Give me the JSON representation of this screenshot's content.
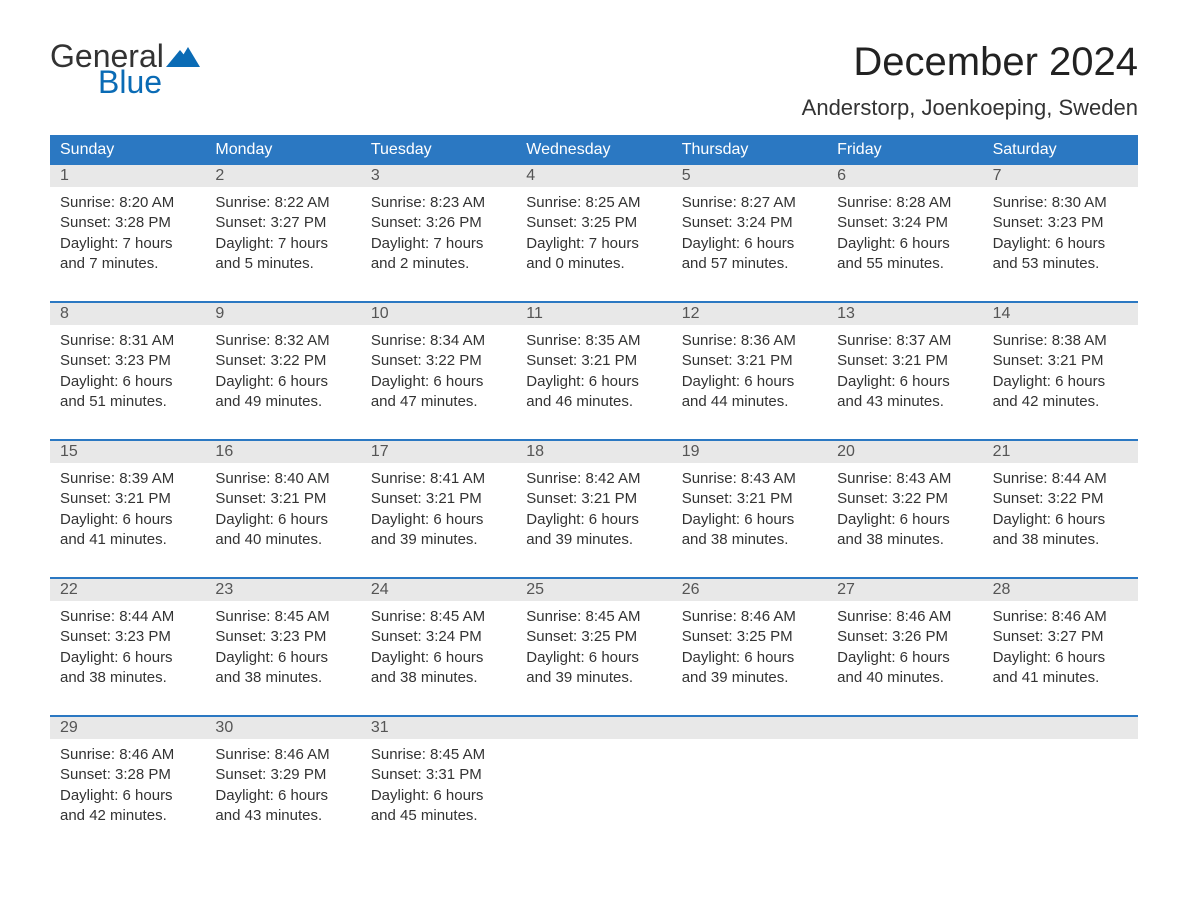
{
  "logo": {
    "word1": "General",
    "word2": "Blue",
    "color_general": "#333333",
    "color_blue": "#0a6bb5",
    "flag_color": "#0a6bb5"
  },
  "title": "December 2024",
  "location": "Anderstorp, Joenkoeping, Sweden",
  "colors": {
    "header_bg": "#2b78c2",
    "header_text": "#ffffff",
    "daynum_bg": "#e8e8e8",
    "week_border": "#2b78c2",
    "body_text": "#333333",
    "page_bg": "#ffffff"
  },
  "typography": {
    "title_fontsize": 40,
    "location_fontsize": 22,
    "weekday_fontsize": 16,
    "daynum_fontsize": 16,
    "body_fontsize": 15
  },
  "weekdays": [
    "Sunday",
    "Monday",
    "Tuesday",
    "Wednesday",
    "Thursday",
    "Friday",
    "Saturday"
  ],
  "weeks": [
    [
      {
        "num": "1",
        "sunrise": "Sunrise: 8:20 AM",
        "sunset": "Sunset: 3:28 PM",
        "day1": "Daylight: 7 hours",
        "day2": "and 7 minutes."
      },
      {
        "num": "2",
        "sunrise": "Sunrise: 8:22 AM",
        "sunset": "Sunset: 3:27 PM",
        "day1": "Daylight: 7 hours",
        "day2": "and 5 minutes."
      },
      {
        "num": "3",
        "sunrise": "Sunrise: 8:23 AM",
        "sunset": "Sunset: 3:26 PM",
        "day1": "Daylight: 7 hours",
        "day2": "and 2 minutes."
      },
      {
        "num": "4",
        "sunrise": "Sunrise: 8:25 AM",
        "sunset": "Sunset: 3:25 PM",
        "day1": "Daylight: 7 hours",
        "day2": "and 0 minutes."
      },
      {
        "num": "5",
        "sunrise": "Sunrise: 8:27 AM",
        "sunset": "Sunset: 3:24 PM",
        "day1": "Daylight: 6 hours",
        "day2": "and 57 minutes."
      },
      {
        "num": "6",
        "sunrise": "Sunrise: 8:28 AM",
        "sunset": "Sunset: 3:24 PM",
        "day1": "Daylight: 6 hours",
        "day2": "and 55 minutes."
      },
      {
        "num": "7",
        "sunrise": "Sunrise: 8:30 AM",
        "sunset": "Sunset: 3:23 PM",
        "day1": "Daylight: 6 hours",
        "day2": "and 53 minutes."
      }
    ],
    [
      {
        "num": "8",
        "sunrise": "Sunrise: 8:31 AM",
        "sunset": "Sunset: 3:23 PM",
        "day1": "Daylight: 6 hours",
        "day2": "and 51 minutes."
      },
      {
        "num": "9",
        "sunrise": "Sunrise: 8:32 AM",
        "sunset": "Sunset: 3:22 PM",
        "day1": "Daylight: 6 hours",
        "day2": "and 49 minutes."
      },
      {
        "num": "10",
        "sunrise": "Sunrise: 8:34 AM",
        "sunset": "Sunset: 3:22 PM",
        "day1": "Daylight: 6 hours",
        "day2": "and 47 minutes."
      },
      {
        "num": "11",
        "sunrise": "Sunrise: 8:35 AM",
        "sunset": "Sunset: 3:21 PM",
        "day1": "Daylight: 6 hours",
        "day2": "and 46 minutes."
      },
      {
        "num": "12",
        "sunrise": "Sunrise: 8:36 AM",
        "sunset": "Sunset: 3:21 PM",
        "day1": "Daylight: 6 hours",
        "day2": "and 44 minutes."
      },
      {
        "num": "13",
        "sunrise": "Sunrise: 8:37 AM",
        "sunset": "Sunset: 3:21 PM",
        "day1": "Daylight: 6 hours",
        "day2": "and 43 minutes."
      },
      {
        "num": "14",
        "sunrise": "Sunrise: 8:38 AM",
        "sunset": "Sunset: 3:21 PM",
        "day1": "Daylight: 6 hours",
        "day2": "and 42 minutes."
      }
    ],
    [
      {
        "num": "15",
        "sunrise": "Sunrise: 8:39 AM",
        "sunset": "Sunset: 3:21 PM",
        "day1": "Daylight: 6 hours",
        "day2": "and 41 minutes."
      },
      {
        "num": "16",
        "sunrise": "Sunrise: 8:40 AM",
        "sunset": "Sunset: 3:21 PM",
        "day1": "Daylight: 6 hours",
        "day2": "and 40 minutes."
      },
      {
        "num": "17",
        "sunrise": "Sunrise: 8:41 AM",
        "sunset": "Sunset: 3:21 PM",
        "day1": "Daylight: 6 hours",
        "day2": "and 39 minutes."
      },
      {
        "num": "18",
        "sunrise": "Sunrise: 8:42 AM",
        "sunset": "Sunset: 3:21 PM",
        "day1": "Daylight: 6 hours",
        "day2": "and 39 minutes."
      },
      {
        "num": "19",
        "sunrise": "Sunrise: 8:43 AM",
        "sunset": "Sunset: 3:21 PM",
        "day1": "Daylight: 6 hours",
        "day2": "and 38 minutes."
      },
      {
        "num": "20",
        "sunrise": "Sunrise: 8:43 AM",
        "sunset": "Sunset: 3:22 PM",
        "day1": "Daylight: 6 hours",
        "day2": "and 38 minutes."
      },
      {
        "num": "21",
        "sunrise": "Sunrise: 8:44 AM",
        "sunset": "Sunset: 3:22 PM",
        "day1": "Daylight: 6 hours",
        "day2": "and 38 minutes."
      }
    ],
    [
      {
        "num": "22",
        "sunrise": "Sunrise: 8:44 AM",
        "sunset": "Sunset: 3:23 PM",
        "day1": "Daylight: 6 hours",
        "day2": "and 38 minutes."
      },
      {
        "num": "23",
        "sunrise": "Sunrise: 8:45 AM",
        "sunset": "Sunset: 3:23 PM",
        "day1": "Daylight: 6 hours",
        "day2": "and 38 minutes."
      },
      {
        "num": "24",
        "sunrise": "Sunrise: 8:45 AM",
        "sunset": "Sunset: 3:24 PM",
        "day1": "Daylight: 6 hours",
        "day2": "and 38 minutes."
      },
      {
        "num": "25",
        "sunrise": "Sunrise: 8:45 AM",
        "sunset": "Sunset: 3:25 PM",
        "day1": "Daylight: 6 hours",
        "day2": "and 39 minutes."
      },
      {
        "num": "26",
        "sunrise": "Sunrise: 8:46 AM",
        "sunset": "Sunset: 3:25 PM",
        "day1": "Daylight: 6 hours",
        "day2": "and 39 minutes."
      },
      {
        "num": "27",
        "sunrise": "Sunrise: 8:46 AM",
        "sunset": "Sunset: 3:26 PM",
        "day1": "Daylight: 6 hours",
        "day2": "and 40 minutes."
      },
      {
        "num": "28",
        "sunrise": "Sunrise: 8:46 AM",
        "sunset": "Sunset: 3:27 PM",
        "day1": "Daylight: 6 hours",
        "day2": "and 41 minutes."
      }
    ],
    [
      {
        "num": "29",
        "sunrise": "Sunrise: 8:46 AM",
        "sunset": "Sunset: 3:28 PM",
        "day1": "Daylight: 6 hours",
        "day2": "and 42 minutes."
      },
      {
        "num": "30",
        "sunrise": "Sunrise: 8:46 AM",
        "sunset": "Sunset: 3:29 PM",
        "day1": "Daylight: 6 hours",
        "day2": "and 43 minutes."
      },
      {
        "num": "31",
        "sunrise": "Sunrise: 8:45 AM",
        "sunset": "Sunset: 3:31 PM",
        "day1": "Daylight: 6 hours",
        "day2": "and 45 minutes."
      },
      null,
      null,
      null,
      null
    ]
  ]
}
